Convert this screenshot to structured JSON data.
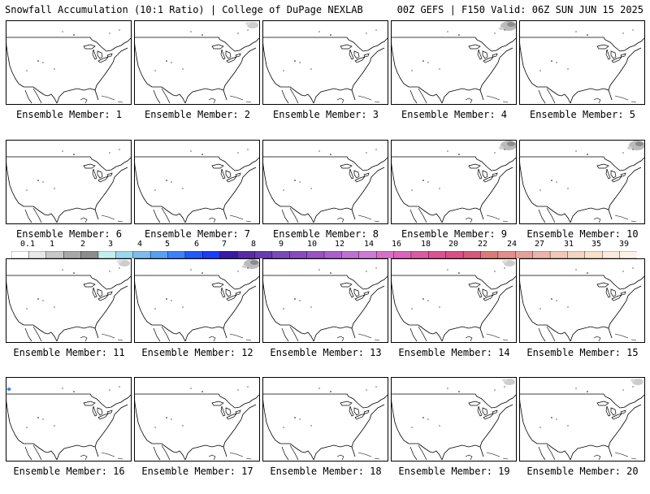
{
  "header": {
    "title_left": "Snowfall Accumulation (10:1 Ratio) | College of DuPage NEXLAB",
    "title_right": "00Z GEFS | F150 Valid: 06Z SUN JUN 15 2025"
  },
  "panels": [
    {
      "label": "Ensemble Member: 1",
      "snow": []
    },
    {
      "label": "Ensemble Member: 2",
      "snow": [
        "ne-light"
      ]
    },
    {
      "label": "Ensemble Member: 3",
      "snow": []
    },
    {
      "label": "Ensemble Member: 4",
      "snow": [
        "ne-heavy"
      ]
    },
    {
      "label": "Ensemble Member: 5",
      "snow": []
    },
    {
      "label": "Ensemble Member: 6",
      "snow": []
    },
    {
      "label": "Ensemble Member: 7",
      "snow": []
    },
    {
      "label": "Ensemble Member: 8",
      "snow": []
    },
    {
      "label": "Ensemble Member: 9",
      "snow": [
        "ne-heavy"
      ]
    },
    {
      "label": "Ensemble Member: 10",
      "snow": [
        "ne-heavy"
      ]
    },
    {
      "label": "Ensemble Member: 11",
      "snow": [
        "ne-light"
      ]
    },
    {
      "label": "Ensemble Member: 12",
      "snow": [
        "ne-heavy"
      ]
    },
    {
      "label": "Ensemble Member: 13",
      "snow": []
    },
    {
      "label": "Ensemble Member: 14",
      "snow": [
        "ne-light"
      ]
    },
    {
      "label": "Ensemble Member: 15",
      "snow": []
    },
    {
      "label": "Ensemble Member: 16",
      "snow": [
        "nw-blue"
      ]
    },
    {
      "label": "Ensemble Member: 17",
      "snow": []
    },
    {
      "label": "Ensemble Member: 18",
      "snow": []
    },
    {
      "label": "Ensemble Member: 19",
      "snow": [
        "ne-light"
      ]
    },
    {
      "label": "Ensemble Member: 20",
      "snow": [
        "ne-light"
      ]
    }
  ],
  "colorbar": {
    "ticks": [
      "0.1",
      "1",
      "2",
      "3",
      "4",
      "5",
      "6",
      "7",
      "8",
      "9",
      "10",
      "12",
      "14",
      "16",
      "18",
      "20",
      "22",
      "24",
      "27",
      "31",
      "35",
      "39"
    ],
    "colors": [
      "#ffffff",
      "#e8e8e8",
      "#c8c8c8",
      "#a8a8a8",
      "#8c8c8c",
      "#bff0f0",
      "#9ad8ee",
      "#7cbcec",
      "#5a9ff0",
      "#3c82ff",
      "#1f5aff",
      "#1a3cff",
      "#3a1aa8",
      "#5a2aa8",
      "#6a3ab0",
      "#7a4ab8",
      "#8a4abe",
      "#9a52c6",
      "#ac60cc",
      "#c070d4",
      "#d07ad8",
      "#d870c8",
      "#dc64b8",
      "#dc5aa4",
      "#dc5294",
      "#dc4e84",
      "#d85878",
      "#dc7a7a",
      "#e28e8a",
      "#e6a09a",
      "#ecb4a8",
      "#f0c6b4",
      "#f4d4c0",
      "#f8e0cc",
      "#fbeadc",
      "#fdf2e8"
    ],
    "colorbar_colors_note": ""
  }
}
